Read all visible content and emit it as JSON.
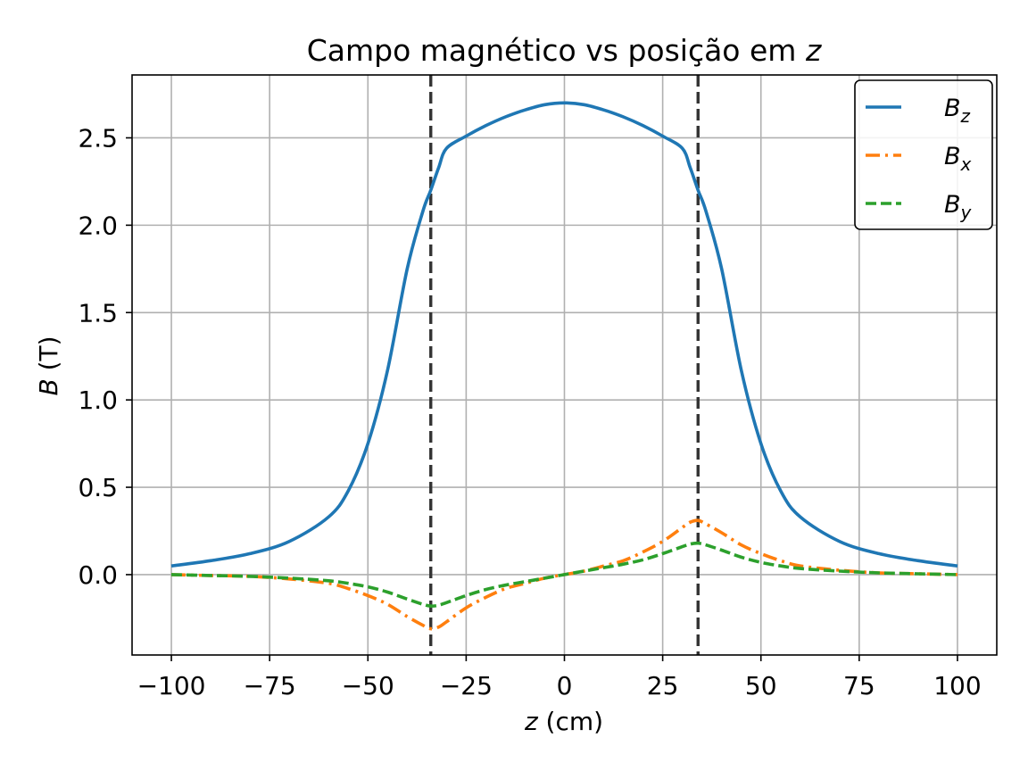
{
  "chart_data": {
    "type": "line",
    "title_text": "Campo magnético vs posição em ",
    "title_var": "z",
    "xlabel_var": "z",
    "xlabel_unit": " (cm)",
    "ylabel_var": "B",
    "ylabel_unit": " (T)",
    "xlim": [
      -110,
      110
    ],
    "ylim": [
      -0.46,
      2.86
    ],
    "grid": true,
    "legend_position": "top-right",
    "xticks": [
      -100,
      -75,
      -50,
      -25,
      0,
      25,
      50,
      75,
      100
    ],
    "xtick_labels": [
      "−100",
      "−75",
      "−50",
      "−25",
      "0",
      "25",
      "50",
      "75",
      "100"
    ],
    "yticks": [
      0.0,
      0.5,
      1.0,
      1.5,
      2.0,
      2.5
    ],
    "ytick_labels": [
      "0.0",
      "0.5",
      "1.0",
      "1.5",
      "2.0",
      "2.5"
    ],
    "vertical_lines": [
      -34,
      34
    ],
    "x": [
      -100,
      -90,
      -80,
      -70,
      -60,
      -55,
      -50,
      -45,
      -40,
      -36,
      -34,
      -32,
      -30,
      -25,
      -20,
      -15,
      -10,
      -5,
      0,
      5,
      10,
      15,
      20,
      25,
      30,
      32,
      34,
      36,
      40,
      45,
      50,
      55,
      60,
      70,
      80,
      90,
      100
    ],
    "series": [
      {
        "name": "B",
        "subscript": "z",
        "color": "#1f77b4",
        "dash": "solid",
        "values": [
          0.05,
          0.08,
          0.12,
          0.19,
          0.33,
          0.48,
          0.75,
          1.17,
          1.75,
          2.08,
          2.2,
          2.33,
          2.44,
          2.51,
          2.57,
          2.62,
          2.66,
          2.69,
          2.7,
          2.69,
          2.66,
          2.62,
          2.57,
          2.51,
          2.44,
          2.33,
          2.2,
          2.08,
          1.75,
          1.17,
          0.75,
          0.48,
          0.33,
          0.19,
          0.12,
          0.08,
          0.05
        ]
      },
      {
        "name": "B",
        "subscript": "x",
        "color": "#ff7f0e",
        "dash": "dashdot",
        "values": [
          0.0,
          -0.005,
          -0.01,
          -0.025,
          -0.05,
          -0.08,
          -0.12,
          -0.17,
          -0.24,
          -0.29,
          -0.31,
          -0.3,
          -0.27,
          -0.19,
          -0.13,
          -0.08,
          -0.05,
          -0.02,
          0.0,
          0.02,
          0.05,
          0.08,
          0.13,
          0.19,
          0.27,
          0.3,
          0.31,
          0.29,
          0.24,
          0.17,
          0.12,
          0.08,
          0.05,
          0.025,
          0.01,
          0.005,
          0.0
        ]
      },
      {
        "name": "B",
        "subscript": "y",
        "color": "#2ca02c",
        "dash": "dashed",
        "values": [
          0.0,
          -0.005,
          -0.01,
          -0.02,
          -0.035,
          -0.05,
          -0.07,
          -0.1,
          -0.14,
          -0.17,
          -0.18,
          -0.175,
          -0.16,
          -0.12,
          -0.085,
          -0.06,
          -0.04,
          -0.02,
          0.0,
          0.02,
          0.04,
          0.06,
          0.085,
          0.12,
          0.16,
          0.175,
          0.18,
          0.17,
          0.14,
          0.1,
          0.07,
          0.05,
          0.035,
          0.02,
          0.01,
          0.005,
          0.0
        ]
      }
    ]
  }
}
